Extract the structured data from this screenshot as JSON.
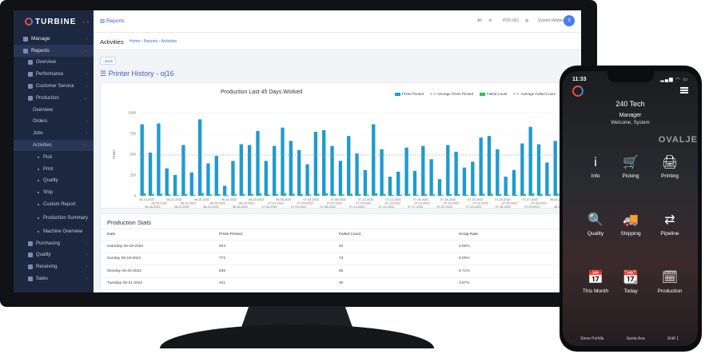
{
  "app": {
    "logo_text": "TURBINE",
    "version": "1.0"
  },
  "sidebar": {
    "items": [
      {
        "label": "Manage",
        "level": 0,
        "chevron": "›"
      },
      {
        "label": "Reports",
        "level": 0,
        "chevron": "⌄",
        "active": true
      },
      {
        "label": "Overview",
        "level": 1
      },
      {
        "label": "Performance",
        "level": 1,
        "chevron": "›"
      },
      {
        "label": "Customer Service",
        "level": 1,
        "chevron": "›"
      },
      {
        "label": "Production",
        "level": 1,
        "chevron": "⌄"
      },
      {
        "label": "Overview",
        "level": 2
      },
      {
        "label": "Orders",
        "level": 2,
        "chevron": "›"
      },
      {
        "label": "Jobs",
        "level": 2,
        "chevron": "›"
      },
      {
        "label": "Activities",
        "level": 2,
        "chevron": "⌄",
        "active": true
      },
      {
        "label": "Pick",
        "level": 3
      },
      {
        "label": "Print",
        "level": 3
      },
      {
        "label": "Quality",
        "level": 3
      },
      {
        "label": "Ship",
        "level": 3
      },
      {
        "label": "Custom Report",
        "level": 3
      },
      {
        "label": "Production Summary",
        "level": 3,
        "tall": true
      },
      {
        "label": "Machine Overview",
        "level": 3
      },
      {
        "label": "Purchasing",
        "level": 1,
        "chevron": "›"
      },
      {
        "label": "Quality",
        "level": 1,
        "chevron": "›"
      },
      {
        "label": "Receiving",
        "level": 1,
        "chevron": "›"
      },
      {
        "label": "Sales",
        "level": 1,
        "chevron": "›"
      }
    ]
  },
  "topbar": {
    "section": "Reports",
    "item1": "All",
    "item2": "PDX-001",
    "user": "System Admin",
    "avatar_initial": "S"
  },
  "pagehead": {
    "title": "Activities",
    "breadcrumb": "Home › Reports › Activities"
  },
  "back_label": "‹ Back",
  "page_title": "Printer History - oj16",
  "chart_data": {
    "type": "bar",
    "title": "Production Last 45 Days Worked",
    "ylabel": "Prints",
    "ylim": [
      0,
      1000
    ],
    "yticks": [
      0,
      250,
      500,
      750,
      1000
    ],
    "xticks_row1": [
      "06-14-2022",
      "06-21-2022",
      "06-15-2022",
      "06-19-2022",
      "06-22-2022",
      "06-30-2022",
      "07-03-2022",
      "07-06-2022",
      "07-12-2022",
      "07-12-2022",
      "07-15-2022",
      "07-18-2022",
      "07-21-2022",
      "07-24-2022",
      "07-27-2022",
      "08-03-2022"
    ],
    "xticks_row2": [
      "06-15-2022",
      "06-22-2022",
      "06-25-2022",
      "06-28-2022",
      "07-01-2022",
      "07-04-2022",
      "07-07-2022",
      "07-10-2022",
      "07-13-2022",
      "07-16-2022",
      "07-19-2022",
      "07-22-2022",
      "07-25-2022",
      "07-28-2022",
      "08-01-2022"
    ],
    "xticks_row3": [
      "06-18-2022",
      "06-21-2022",
      "06-24-2022",
      "06-30-2022",
      "07-02-2022",
      "07-05-2022",
      "07-08-2022",
      "07-11-2022",
      "07-14-2022",
      "07-17-2022",
      "07-20-2022",
      "07-23-2022",
      "07-26-2022",
      "07-29-2022",
      "08-01-2022"
    ],
    "series": [
      {
        "name": "Prints Printed",
        "color": "#1d9bd1",
        "values": [
          860,
          520,
          870,
          330,
          250,
          610,
          280,
          920,
          390,
          480,
          120,
          420,
          620,
          610,
          780,
          420,
          600,
          820,
          660,
          550,
          380,
          770,
          790,
          600,
          420,
          720,
          510,
          310,
          860,
          560,
          230,
          290,
          580,
          300,
          600,
          440,
          200,
          610,
          530,
          340,
          410,
          700,
          720,
          560,
          230,
          310,
          630,
          830,
          620,
          400,
          660,
          450,
          560
        ]
      },
      {
        "name": "Average Prints Printed",
        "color": "#a0a0a0",
        "style": "dashed",
        "values": [
          490
        ]
      },
      {
        "name": "Failed Count",
        "color": "#22c55e",
        "values": [
          30,
          20,
          25,
          15,
          10,
          20,
          10,
          35,
          15,
          20,
          5,
          15,
          20,
          20,
          30,
          15,
          20,
          30,
          25,
          20,
          15,
          25,
          30,
          20,
          15,
          25,
          20,
          10,
          30,
          20,
          10,
          10,
          20,
          10,
          20,
          15,
          10,
          20,
          20,
          10,
          15,
          25,
          25,
          20,
          10,
          10,
          20,
          30,
          20,
          15,
          25,
          15,
          20
        ]
      },
      {
        "name": "Average Failed Count",
        "color": "#a0a0a0",
        "style": "dotted",
        "values": [
          20
        ]
      }
    ]
  },
  "stats": {
    "title": "Production Stats",
    "headers": [
      "Date",
      "Prints Printed",
      "Failed Count",
      "Scrap Rate"
    ],
    "rows": [
      [
        "Saturday 06-18-2022",
        "504",
        "40",
        "0.00%"
      ],
      [
        "Sunday 06-19-2022",
        "773",
        "73",
        "9.00%"
      ],
      [
        "Monday 06-20-2022",
        "838",
        "65",
        "5.71%"
      ],
      [
        "Tuesday 06-21-2022",
        "341",
        "30",
        "3.57%"
      ]
    ]
  },
  "phone": {
    "time": "11:33",
    "company": "240 Tech",
    "role": "Manager",
    "welcome": "Welcome, System",
    "brand": "OVALJE",
    "tiles": [
      {
        "label": "Info",
        "icon": "info-icon",
        "glyph": "i"
      },
      {
        "label": "Picking",
        "icon": "cart-icon",
        "glyph": "🛒"
      },
      {
        "label": "Printing",
        "icon": "printer-icon",
        "glyph": "🖨"
      },
      {
        "label": "Quality",
        "icon": "quality-search-icon",
        "glyph": "🔍"
      },
      {
        "label": "Shipping",
        "icon": "truck-icon",
        "glyph": "🚚"
      },
      {
        "label": "Pipeline",
        "icon": "pipeline-icon",
        "glyph": "⇄"
      },
      {
        "label": "This Month",
        "icon": "calendar-month-icon",
        "glyph": "📅"
      },
      {
        "label": "Today",
        "icon": "calendar-today-icon",
        "glyph": "📆"
      },
      {
        "label": "Production",
        "icon": "calendar-search-icon",
        "glyph": "🗓"
      }
    ],
    "bottom": [
      "Steve Portilla",
      "Santa Ana",
      "Shift 1"
    ]
  }
}
